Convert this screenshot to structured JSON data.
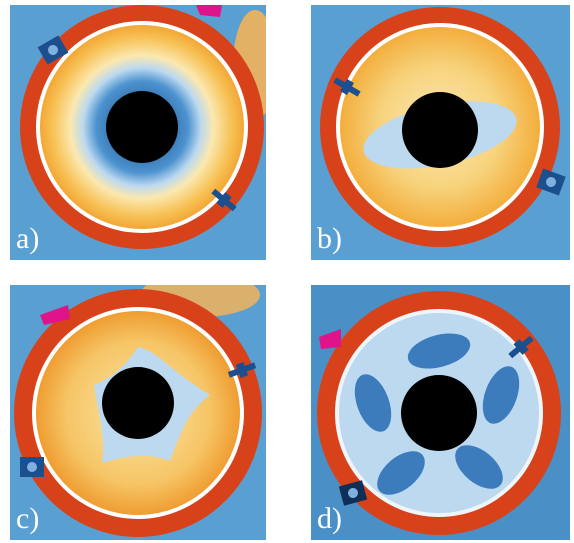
{
  "figure": {
    "panels": [
      {
        "id": "a",
        "label": "a)"
      },
      {
        "id": "b",
        "label": "b)"
      },
      {
        "id": "c",
        "label": "c)"
      },
      {
        "id": "d",
        "label": "d)"
      }
    ]
  },
  "colors": {
    "background_blue": "#5a9fd2",
    "ring_red": "#d8421a",
    "field_orange": "#f2a735",
    "field_yellow": "#fbe5a0",
    "light_blue": "#bcd9f0",
    "core_black": "#000000",
    "marker_magenta": "#e0148a",
    "label_white": "#ffffff"
  }
}
